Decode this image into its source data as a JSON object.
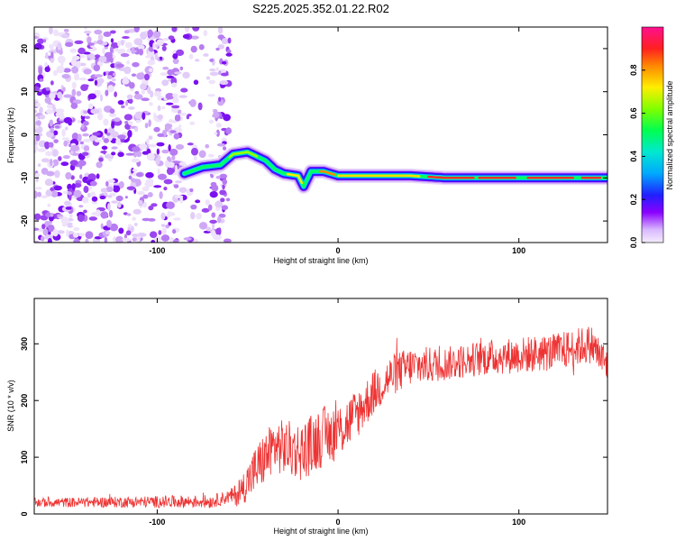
{
  "title": "S225.2025.352.01.22.R02",
  "chart_data": [
    {
      "type": "heatmap",
      "panel": "spectrogram",
      "xlabel": "Height of straight line (km)",
      "ylabel": "Frequency (Hz)",
      "xlim": [
        -168,
        149
      ],
      "ylim": [
        -25,
        25
      ],
      "xticks": [
        -100,
        0,
        100
      ],
      "yticks": [
        -20,
        -10,
        0,
        10,
        20
      ],
      "colorbar": {
        "label": "Normalized spectral amplitude",
        "range": [
          0,
          1
        ],
        "ticks": [
          0.0,
          0.2,
          0.4,
          0.6,
          0.8
        ],
        "colors": [
          "#e6d6f8",
          "#c77dff",
          "#7a00ff",
          "#1f1fff",
          "#00c8ff",
          "#00ff66",
          "#a0ff00",
          "#ffee00",
          "#ff8800",
          "#ff2020",
          "#ff1090"
        ]
      },
      "noise_region_x": [
        -168,
        -60
      ],
      "ridge": [
        {
          "x": -85,
          "f": -9
        },
        {
          "x": -75,
          "f": -7.5
        },
        {
          "x": -65,
          "f": -7
        },
        {
          "x": -58,
          "f": -4.5
        },
        {
          "x": -50,
          "f": -4
        },
        {
          "x": -40,
          "f": -6
        },
        {
          "x": -35,
          "f": -8
        },
        {
          "x": -30,
          "f": -9
        },
        {
          "x": -22,
          "f": -9.5
        },
        {
          "x": -19,
          "f": -12
        },
        {
          "x": -15,
          "f": -8.5
        },
        {
          "x": -8,
          "f": -8.5
        },
        {
          "x": 0,
          "f": -9.5
        },
        {
          "x": 40,
          "f": -9.5
        },
        {
          "x": 60,
          "f": -10
        },
        {
          "x": 80,
          "f": -10
        },
        {
          "x": 100,
          "f": -10
        },
        {
          "x": 120,
          "f": -10
        },
        {
          "x": 149,
          "f": -10
        }
      ]
    },
    {
      "type": "line",
      "panel": "snr",
      "xlabel": "Height of straight line (km)",
      "ylabel": "SNR (10 * v/v)",
      "xlim": [
        -168,
        149
      ],
      "ylim": [
        0,
        380
      ],
      "xticks": [
        -100,
        0,
        100
      ],
      "yticks": [
        0,
        100,
        200,
        300
      ],
      "color": "#ee3333",
      "trend": [
        {
          "x": -168,
          "y": 20
        },
        {
          "x": -70,
          "y": 22
        },
        {
          "x": -55,
          "y": 35
        },
        {
          "x": -45,
          "y": 80
        },
        {
          "x": -35,
          "y": 120
        },
        {
          "x": -20,
          "y": 110
        },
        {
          "x": -10,
          "y": 135
        },
        {
          "x": 0,
          "y": 145
        },
        {
          "x": 10,
          "y": 175
        },
        {
          "x": 20,
          "y": 215
        },
        {
          "x": 30,
          "y": 245
        },
        {
          "x": 40,
          "y": 260
        },
        {
          "x": 60,
          "y": 265
        },
        {
          "x": 80,
          "y": 275
        },
        {
          "x": 100,
          "y": 280
        },
        {
          "x": 120,
          "y": 285
        },
        {
          "x": 140,
          "y": 300
        },
        {
          "x": 149,
          "y": 260
        }
      ],
      "noise_amplitude": [
        {
          "x": -168,
          "a": 8
        },
        {
          "x": -60,
          "a": 12
        },
        {
          "x": -45,
          "a": 45
        },
        {
          "x": -10,
          "a": 55
        },
        {
          "x": 20,
          "a": 40
        },
        {
          "x": 60,
          "a": 30
        },
        {
          "x": 149,
          "a": 35
        }
      ]
    }
  ]
}
